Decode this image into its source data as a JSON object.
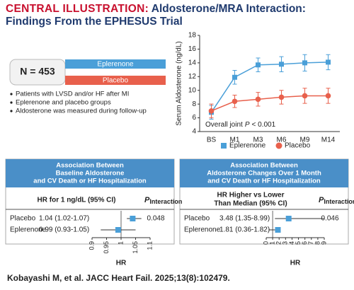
{
  "header": {
    "label": "CENTRAL ILLUSTRATION:",
    "title": "Aldosterone/MRA Interaction: Findings From the EPHESUS Trial"
  },
  "summary": {
    "n": "N = 453",
    "groups": [
      {
        "name": "Eplerenone",
        "color": "#4a9fd8"
      },
      {
        "name": "Placebo",
        "color": "#e8604c"
      }
    ],
    "bullets": [
      "Patients with LVSD and/or HF after MI",
      "Eplerenone and placebo groups",
      "Aldosterone was measured during follow-up"
    ]
  },
  "chart_data": {
    "type": "line",
    "ylabel": "Serum Aldosterone (ng/dL)",
    "categories": [
      "BS",
      "M1",
      "M3",
      "M6",
      "M9",
      "M14"
    ],
    "ylim": [
      4,
      18
    ],
    "yticks": [
      4,
      6,
      8,
      10,
      12,
      14,
      16,
      18
    ],
    "annotation": {
      "text": "Overall joint",
      "p": "P",
      "rest": "< 0.001"
    },
    "legend": "bottom",
    "series": [
      {
        "name": "Eplerenone",
        "color": "#4a9fd8",
        "marker": "square",
        "values": [
          6.8,
          11.9,
          13.7,
          13.8,
          14.0,
          14.1
        ],
        "errors": [
          1.0,
          1.0,
          1.0,
          1.1,
          1.2,
          1.1
        ]
      },
      {
        "name": "Placebo",
        "color": "#e8604c",
        "marker": "circle",
        "values": [
          7.0,
          8.4,
          8.7,
          9.0,
          9.2,
          9.2
        ],
        "errors": [
          1.0,
          0.9,
          1.0,
          1.0,
          1.1,
          1.1
        ]
      }
    ]
  },
  "forest_plots": [
    {
      "title": [
        "Association Between",
        "Baseline Aldosterone",
        "and CV Death or HF Hospitalization"
      ],
      "column_header": [
        "HR for 1 ng/dL (95% CI)"
      ],
      "p_label": "P",
      "p_sub": "Interaction",
      "p_value": 0.048,
      "rows": [
        {
          "label": "Placebo",
          "text": "1.04 (1.02-1.07)",
          "hr": 1.04,
          "ci": [
            1.02,
            1.07
          ]
        },
        {
          "label": "Eplerenone",
          "text": "0.99 (0.93-1.05)",
          "hr": 0.99,
          "ci": [
            0.93,
            1.05
          ]
        }
      ],
      "xlabel": "HR",
      "xlim": [
        0.9,
        1.1
      ],
      "xticks": [
        0.9,
        0.95,
        1,
        1.05,
        1.1
      ],
      "reference": 1,
      "color": "#4a9fd8"
    },
    {
      "title": [
        "Association Between",
        "Aldosterone Changes Over 1 Month",
        "and CV Death or HF Hospitalization"
      ],
      "column_header": [
        "HR Higher vs Lower",
        "Than Median (95% CI)"
      ],
      "p_label": "P",
      "p_sub": "Interaction",
      "p_value": 0.046,
      "rows": [
        {
          "label": "Placebo",
          "text": "3.48 (1.35-8.99)",
          "hr": 3.48,
          "ci": [
            1.35,
            8.99
          ]
        },
        {
          "label": "Eplerenone",
          "text": "1.81 (0.36-1.82)",
          "hr": 1.81,
          "ci": [
            0.36,
            1.82
          ]
        }
      ],
      "xlabel": "HR",
      "xlim": [
        0,
        9
      ],
      "xticks": [
        0,
        1,
        2,
        3,
        4,
        5,
        6,
        7,
        8,
        9
      ],
      "reference": 1,
      "color": "#4a9fd8"
    }
  ],
  "footer": "Kobayashi M, et al. JACC Heart Fail. 2025;13(8):102479."
}
